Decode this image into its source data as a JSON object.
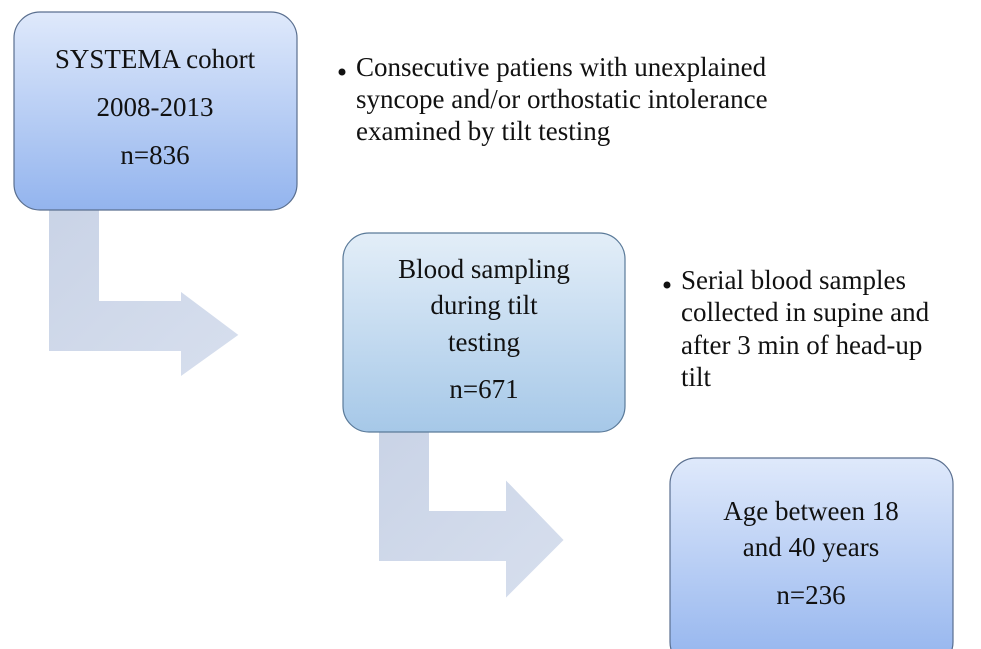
{
  "nodes": [
    {
      "lines": [
        "SYSTEMA cohort",
        "2008-2013",
        "n=836"
      ]
    },
    {
      "lines": [
        "Blood sampling",
        "during tilt",
        "testing",
        "n=671"
      ]
    },
    {
      "lines": [
        "Age between 18",
        "and 40 years",
        "n=236"
      ]
    }
  ],
  "notes": [
    {
      "lines": [
        "Consecutive patiens with unexplained",
        "syncope and/or orthostatic intolerance",
        "examined by tilt testing"
      ]
    },
    {
      "lines": [
        "Serial blood samples",
        "collected in supine and",
        "after 3 min of head-up",
        "tilt"
      ]
    }
  ]
}
